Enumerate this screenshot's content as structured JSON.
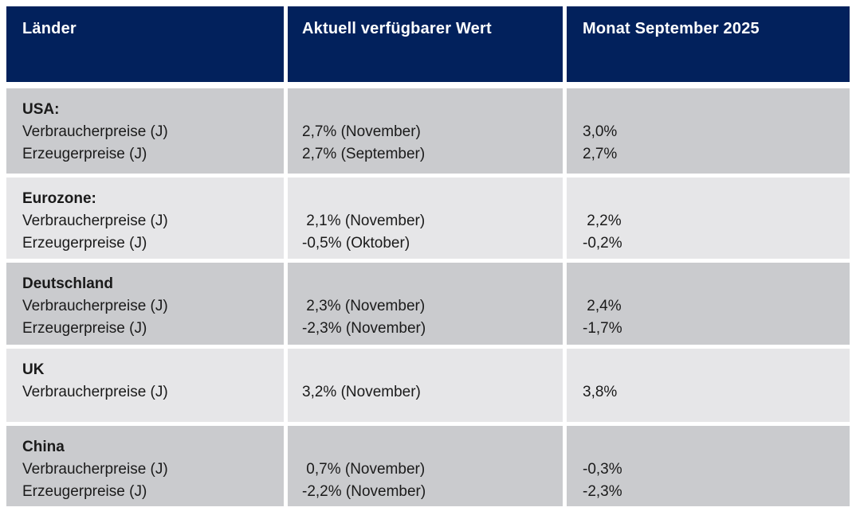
{
  "table": {
    "headers": [
      "Länder",
      "Aktuell verfügbarer Wert",
      "Monat September 2025"
    ],
    "rows": [
      {
        "country": "USA:",
        "indicators": "Verbraucherpreise (J)\nErzeugerpreise (J)",
        "current_value": "2,7% (November)\n2,7% (September)",
        "september_2025": "3,0%\n2,7%"
      },
      {
        "country": "Eurozone:",
        "indicators": "Verbraucherpreise (J)\nErzeugerpreise (J)",
        "current_value": " 2,1% (November)\n-0,5% (Oktober)",
        "september_2025": " 2,2%\n-0,2%"
      },
      {
        "country": "Deutschland",
        "indicators": "Verbraucherpreise (J)\nErzeugerpreise (J)",
        "current_value": " 2,3% (November)\n-2,3% (November)",
        "september_2025": " 2,4%\n-1,7%"
      },
      {
        "country": "UK",
        "indicators": "Verbraucherpreise (J)",
        "current_value": "3,2% (November)",
        "september_2025": "3,8%"
      },
      {
        "country": "China",
        "indicators": "Verbraucherpreise (J)\nErzeugerpreise (J)",
        "current_value": " 0,7% (November)\n-2,2% (November)",
        "september_2025": "-0,3%\n-2,3%"
      }
    ]
  },
  "colors": {
    "header_bg": "#02215c",
    "header_text": "#ffffff",
    "row_band_dark": "#cacbce",
    "row_band_light": "#e6e6e8",
    "body_text": "#1a1a1a"
  }
}
